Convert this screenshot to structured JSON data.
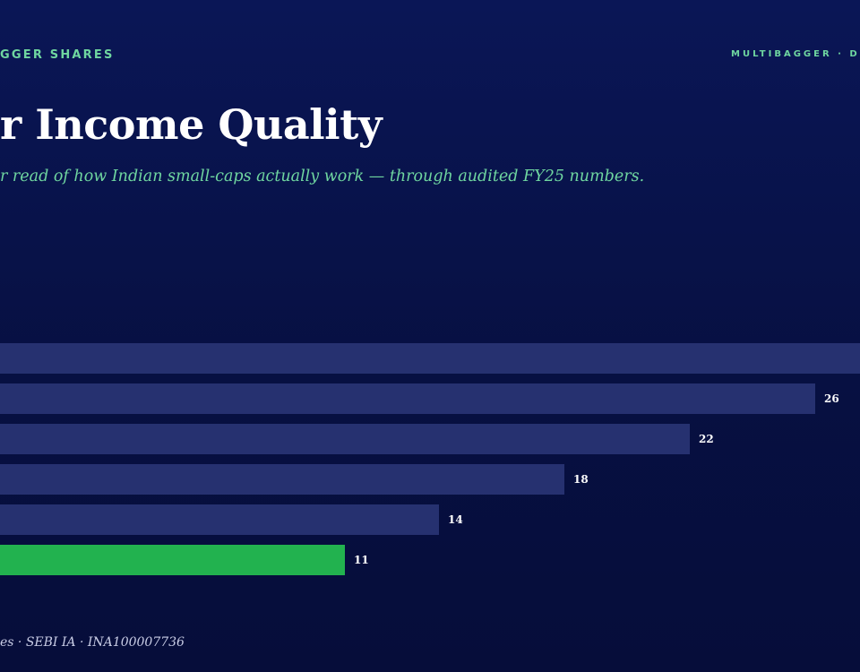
{
  "header": {
    "left_text": "GGER SHARES",
    "right_text": "MULTIBAGGER · D"
  },
  "title": "r Income Quality",
  "subtitle": "r read of how Indian small-caps actually work — through audited FY25 numbers.",
  "footer": "es · SEBI IA · INA100007736",
  "colors": {
    "background": "#081350",
    "bar_default": "#263170",
    "bar_highlight": "#22b24f",
    "accent_text": "#6fd6a0"
  },
  "chart_data": {
    "type": "bar",
    "orientation": "horizontal",
    "values": [
      30,
      26,
      22,
      18,
      14,
      11
    ],
    "value_labels": [
      "",
      "26",
      "22",
      "18",
      "14",
      "11"
    ],
    "highlight_index": 5,
    "xlim": [
      0,
      30
    ]
  }
}
